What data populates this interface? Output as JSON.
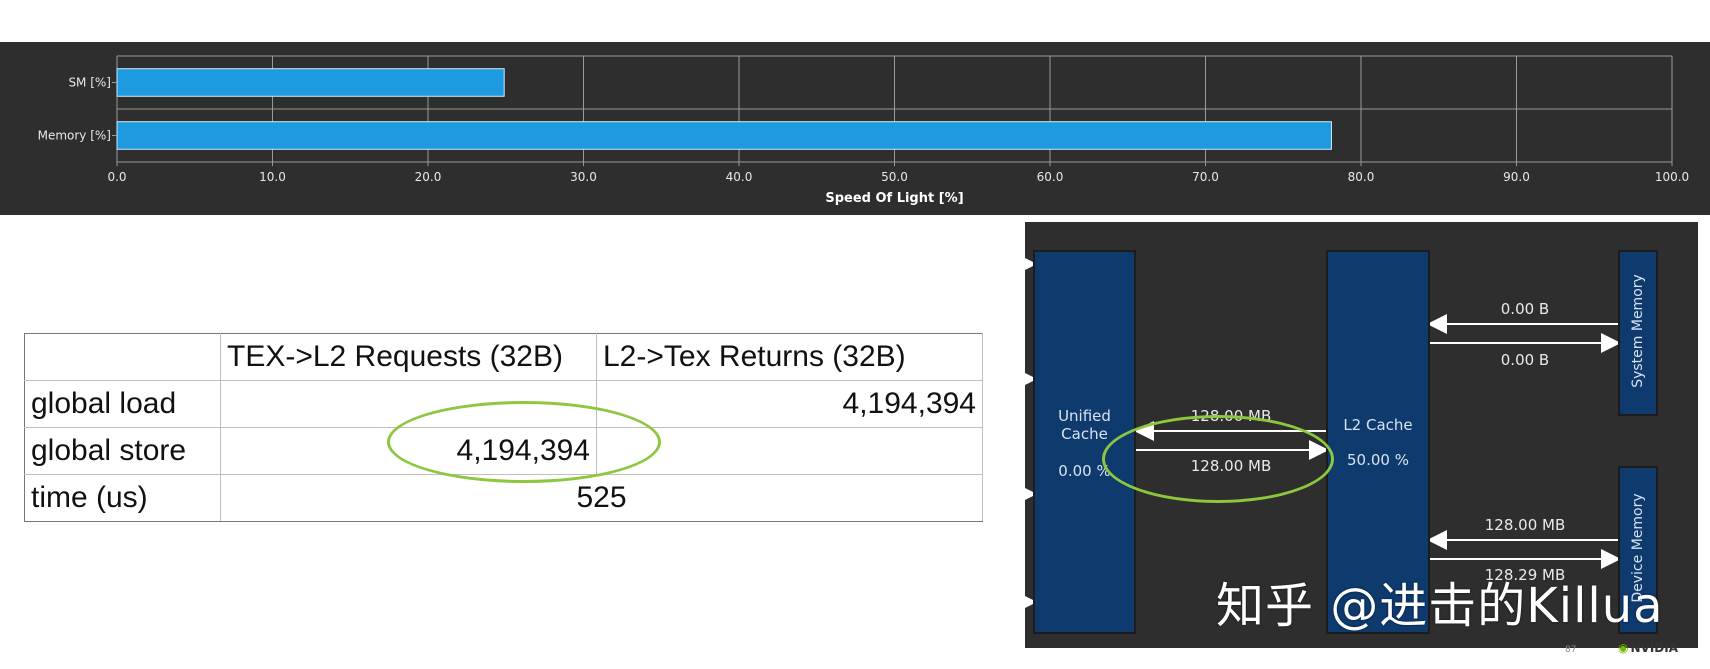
{
  "chart_data": {
    "type": "bar",
    "orientation": "horizontal",
    "categories": [
      "SM [%]",
      "Memory [%]"
    ],
    "values": [
      24.9,
      78.1
    ],
    "xlabel": "Speed Of Light [%]",
    "xlim": [
      0,
      100
    ],
    "xticks": [
      "0.0",
      "10.0",
      "20.0",
      "30.0",
      "40.0",
      "50.0",
      "60.0",
      "70.0",
      "80.0",
      "90.0",
      "100.0"
    ],
    "grid": true,
    "bar_color": "#1e9be0",
    "background": "#2e2e2e"
  },
  "table": {
    "headers": [
      "",
      "TEX->L2 Requests (32B)",
      "L2->Tex Returns (32B)"
    ],
    "rows": [
      {
        "label": "global load",
        "requests": "",
        "returns": "4,194,394"
      },
      {
        "label": "global store",
        "requests": "4,194,394",
        "returns": ""
      },
      {
        "label": "time (us)",
        "merged": "525"
      }
    ]
  },
  "memory_chart": {
    "unified_cache": {
      "name": "Unified\nCache",
      "hit_rate": "0.00 %"
    },
    "l2_cache": {
      "name": "L2 Cache",
      "hit_rate": "50.00 %"
    },
    "system_memory": {
      "name": "System Memory"
    },
    "device_memory": {
      "name": "Device Memory"
    },
    "links": {
      "l2_unified_returns": "128.00 MB",
      "unified_l2_requests": "128.00 MB",
      "system_to_l2": "0.00 B",
      "l2_to_system": "0.00 B",
      "device_to_l2": "128.00 MB",
      "l2_to_device": "128.29 MB"
    }
  },
  "watermark": "知乎 @进击的Killua",
  "footer": {
    "slide_number": "87",
    "logo": "NVIDIA"
  },
  "colors": {
    "highlight": "#8dc63f",
    "panel": "#2e2e2e",
    "block": "#0e3a6e"
  }
}
